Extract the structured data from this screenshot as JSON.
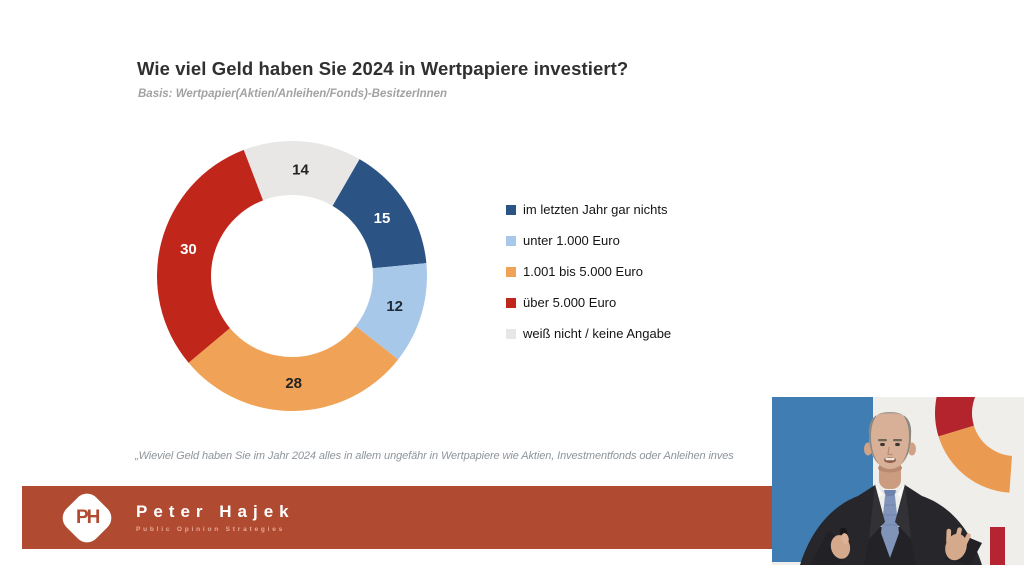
{
  "slide": {
    "title": "Wie viel Geld haben Sie 2024 in Wertpapiere investiert?",
    "subtitle": "Basis: Wertpapier(Aktien/Anleihen/Fonds)-BesitzerInnen",
    "footnote": "„Wieviel Geld haben Sie im Jahr 2024 alles in allem ungefähr in Wertpapiere wie Aktien, Investmentfonds oder Anleihen inves"
  },
  "chart_data": {
    "type": "pie",
    "subtype": "donut",
    "title": "Wie viel Geld haben Sie 2024 in Wertpapiere investiert?",
    "start_angle_deg": 30,
    "total": 99,
    "legend_position": "right",
    "segments": [
      {
        "label": "im letzten Jahr gar nichts",
        "value": 15,
        "color": "#2b5384",
        "label_color": "#ffffff"
      },
      {
        "label": "unter 1.000 Euro",
        "value": 12,
        "color": "#a8c8e9",
        "label_color": "#1f2a36"
      },
      {
        "label": "1.001 bis 5.000 Euro",
        "value": 28,
        "color": "#f0a357",
        "label_color": "#232323"
      },
      {
        "label": "über 5.000 Euro",
        "value": 30,
        "color": "#c1261b",
        "label_color": "#ffffff"
      },
      {
        "label": "weiß nicht / keine Angabe",
        "value": 14,
        "color": "#e8e7e5",
        "label_color": "#232323"
      }
    ]
  },
  "footer": {
    "brand": "Peter Hajek",
    "brand_sub": "Public Opinion Strategies",
    "logo_monogram": "PH",
    "bar_color": "#b04a31"
  },
  "video": {
    "bg_color": "#efeeea",
    "bg_blue": "#3f7db3",
    "arc_red": "#b4242d",
    "arc_orange": "#eb9a51",
    "bar_red": "#b52430"
  }
}
